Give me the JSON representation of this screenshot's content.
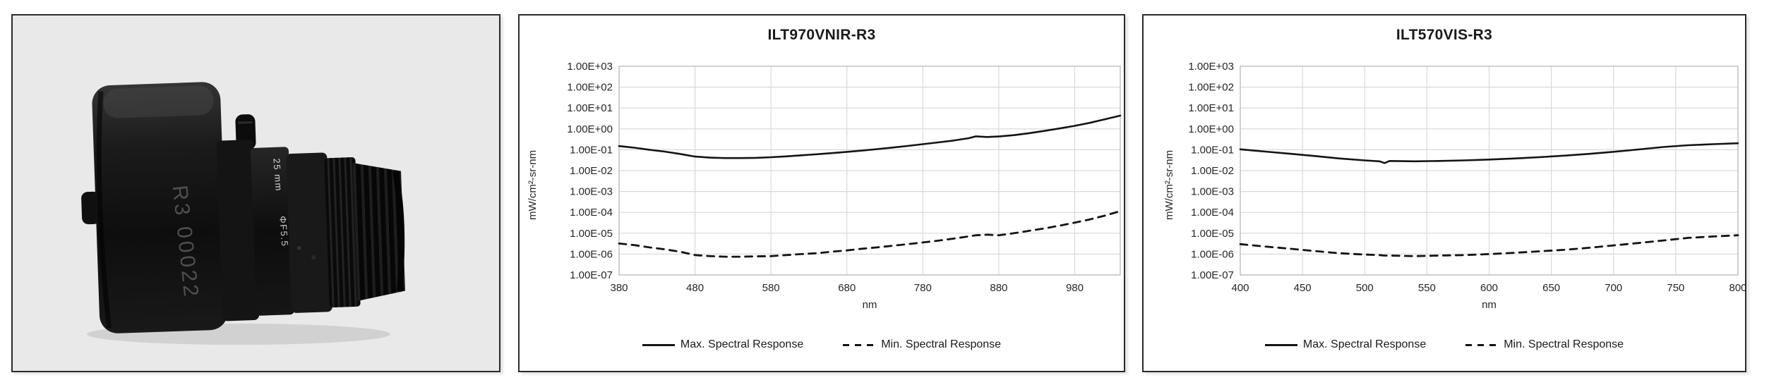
{
  "photo_panel": {
    "bg": "#e9e9e9",
    "device": {
      "name": "ILT radiance calibration head with lens",
      "engraving": "R3 00022",
      "marking_focal": "25 mm",
      "marking_aperture": "ΦF5.5"
    }
  },
  "colors": {
    "line": "#141414",
    "grid": "#d9d9d9",
    "plot_border": "#bfbfbf",
    "tick_text": "#262626",
    "panel_border": "#2b2b2b",
    "photo_bg": "#e9e9e9"
  },
  "chart_data": [
    {
      "type": "line",
      "title": "ILT970VNIR-R3",
      "ylabel": "mW/cm²-sr-nm",
      "xlabel": "nm",
      "grid": true,
      "legend_position": "bottom",
      "y_scale": "log",
      "y_log_max": 3,
      "y_log_min": -7,
      "y_tick_labels": [
        "1.00E+03",
        "1.00E+02",
        "1.00E+01",
        "1.00E+00",
        "1.00E-01",
        "1.00E-02",
        "1.00E-03",
        "1.00E-04",
        "1.00E-05",
        "1.00E-06",
        "1.00E-07"
      ],
      "xlim": [
        380,
        1040
      ],
      "x_ticks": [
        380,
        480,
        580,
        680,
        780,
        880,
        980
      ],
      "x": [
        380,
        400,
        420,
        440,
        460,
        480,
        500,
        520,
        540,
        560,
        580,
        600,
        620,
        640,
        660,
        680,
        700,
        720,
        740,
        760,
        780,
        800,
        820,
        840,
        850,
        865,
        880,
        900,
        920,
        940,
        960,
        980,
        1000,
        1020,
        1040
      ],
      "series": [
        {
          "name": "Max. Spectral Response",
          "style": "solid",
          "values": [
            0.15,
            0.125,
            0.1,
            0.082,
            0.063,
            0.047,
            0.042,
            0.04,
            0.04,
            0.041,
            0.044,
            0.048,
            0.054,
            0.061,
            0.069,
            0.079,
            0.091,
            0.107,
            0.127,
            0.152,
            0.185,
            0.225,
            0.275,
            0.355,
            0.44,
            0.41,
            0.43,
            0.5,
            0.62,
            0.8,
            1.05,
            1.4,
            1.95,
            2.9,
            4.3
          ]
        },
        {
          "name": "Min. Spectral Response",
          "style": "dashed",
          "values": [
            3.2e-06,
            2.7e-06,
            2.1e-06,
            1.7e-06,
            1.3e-06,
            9e-07,
            8e-07,
            7.5e-07,
            7.5e-07,
            7.8e-07,
            8e-07,
            9e-07,
            1e-06,
            1.1e-06,
            1.3e-06,
            1.5e-06,
            1.8e-06,
            2.1e-06,
            2.5e-06,
            3e-06,
            3.6e-06,
            4.4e-06,
            5.5e-06,
            7e-06,
            8e-06,
            8.5e-06,
            8e-06,
            1e-05,
            1.3e-05,
            1.7e-05,
            2.3e-05,
            3.2e-05,
            4.6e-05,
            7e-05,
            0.000115
          ]
        }
      ]
    },
    {
      "type": "line",
      "title": "ILT570VIS-R3",
      "ylabel": "mW/cm²-sr-nm",
      "xlabel": "nm",
      "grid": true,
      "legend_position": "bottom",
      "y_scale": "log",
      "y_log_max": 3,
      "y_log_min": -7,
      "y_tick_labels": [
        "1.00E+03",
        "1.00E+02",
        "1.00E+01",
        "1.00E+00",
        "1.00E-01",
        "1.00E-02",
        "1.00E-03",
        "1.00E-04",
        "1.00E-05",
        "1.00E-06",
        "1.00E-07"
      ],
      "xlim": [
        400,
        800
      ],
      "x_ticks": [
        400,
        450,
        500,
        550,
        600,
        650,
        700,
        750,
        800
      ],
      "x": [
        400,
        420,
        440,
        460,
        480,
        500,
        512,
        516,
        520,
        540,
        560,
        580,
        600,
        620,
        640,
        660,
        680,
        700,
        720,
        740,
        760,
        780,
        800
      ],
      "series": [
        {
          "name": "Max. Spectral Response",
          "style": "solid",
          "values": [
            0.105,
            0.082,
            0.064,
            0.05,
            0.038,
            0.031,
            0.028,
            0.023,
            0.029,
            0.028,
            0.029,
            0.031,
            0.034,
            0.038,
            0.044,
            0.052,
            0.063,
            0.08,
            0.103,
            0.135,
            0.165,
            0.185,
            0.205
          ]
        },
        {
          "name": "Min. Spectral Response",
          "style": "dashed",
          "values": [
            3e-06,
            2.3e-06,
            1.8e-06,
            1.4e-06,
            1.1e-06,
            9.5e-07,
            9e-07,
            8.5e-07,
            8.5e-07,
            8e-07,
            8.5e-07,
            9e-07,
            1e-06,
            1.15e-06,
            1.35e-06,
            1.6e-06,
            2e-06,
            2.6e-06,
            3.4e-06,
            4.5e-06,
            6e-06,
            7e-06,
            8e-06
          ]
        }
      ]
    }
  ]
}
